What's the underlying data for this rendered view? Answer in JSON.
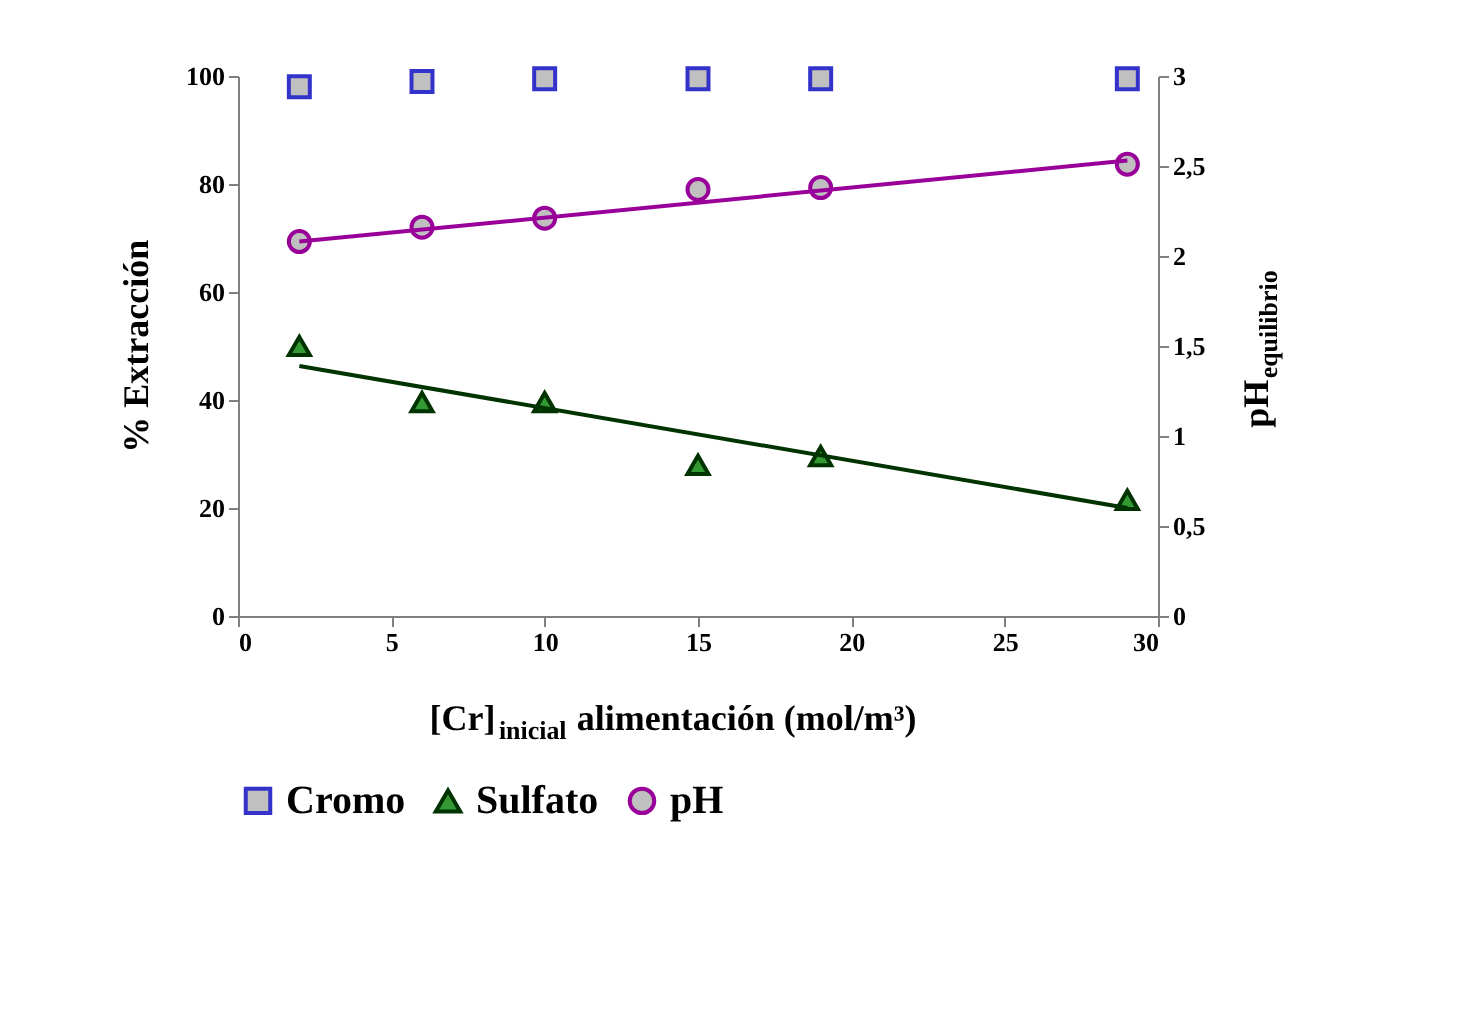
{
  "chart_data": {
    "type": "scatter",
    "xlabel": "[Cr]$_{inicial}$ alimentación (mol/m³)",
    "ylabel": "% Extracción",
    "y2label": "pH$_{equilibrio}$",
    "xlim": [
      0,
      30
    ],
    "xticks": [
      0,
      5,
      10,
      15,
      20,
      25,
      30
    ],
    "ylim": [
      0,
      100
    ],
    "yticks": [
      0,
      20,
      40,
      60,
      80,
      100
    ],
    "y2lim": [
      0,
      3
    ],
    "y2ticks": [
      0,
      {
        "value": 0.5,
        "label": "0,5"
      },
      1,
      {
        "value": 1.5,
        "label": "1,5"
      },
      2,
      {
        "value": 2.5,
        "label": "2,5"
      },
      3
    ],
    "grid": false,
    "legend": "bottom",
    "series": [
      {
        "name": "Cromo",
        "marker": "square",
        "color": "#3333cc",
        "x": [
          2,
          6,
          10,
          15,
          19,
          29
        ],
        "values": [
          98,
          99,
          99.5,
          99.5,
          99.5,
          99.5
        ]
      },
      {
        "name": "Sulfato",
        "marker": "triangle",
        "color": "#339933",
        "x": [
          2,
          6,
          10,
          15,
          19,
          29
        ],
        "values": [
          50,
          39.6,
          39.6,
          28,
          29.6,
          21.5
        ]
      },
      {
        "name": "pH",
        "marker": "circle",
        "color": "#990099",
        "axis": "y2",
        "x": [
          2,
          6,
          10,
          15,
          19,
          29
        ],
        "values": [
          2.08,
          2.16,
          2.21,
          2.37,
          2.38,
          2.51
        ]
      },
      {
        "type": "line",
        "color": "#003300",
        "x": [
          2,
          29
        ],
        "values": [
          46.3,
          20
        ],
        "marker": "none"
      },
      {
        "type": "line",
        "color": "#990099",
        "axis": "y2",
        "x": [
          2,
          29
        ],
        "values": [
          2.08,
          2.53
        ],
        "marker": "none"
      }
    ]
  }
}
